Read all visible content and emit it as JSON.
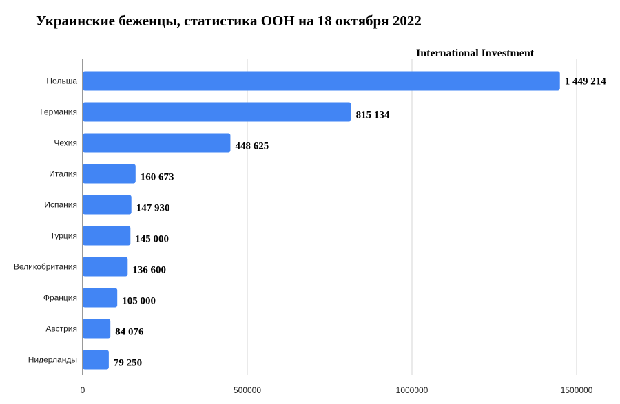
{
  "chart_data": {
    "type": "bar",
    "orientation": "horizontal",
    "title": "Украинские беженцы, статистика ООН на 18 октября 2022",
    "watermark": "International Investment",
    "categories": [
      "Польша",
      "Германия",
      "Чехия",
      "Италия",
      "Испания",
      "Турция",
      "Великобритания",
      "Франция",
      "Австрия",
      "Нидерланды"
    ],
    "values": [
      1449214,
      815134,
      448625,
      160673,
      147930,
      145000,
      136600,
      105000,
      84076,
      79250
    ],
    "value_labels": [
      "1 449 214",
      "815 134",
      "448 625",
      "160 673",
      "147 930",
      "145 000",
      "136 600",
      "105 000",
      "84 076",
      "79 250"
    ],
    "x_ticks": [
      "0",
      "500000",
      "1000000",
      "1500000"
    ],
    "x_tick_values": [
      0,
      500000,
      1000000,
      1500000
    ],
    "xlim": [
      0,
      1500000
    ],
    "grid": "vertical",
    "bar_color": "#4285f4"
  }
}
